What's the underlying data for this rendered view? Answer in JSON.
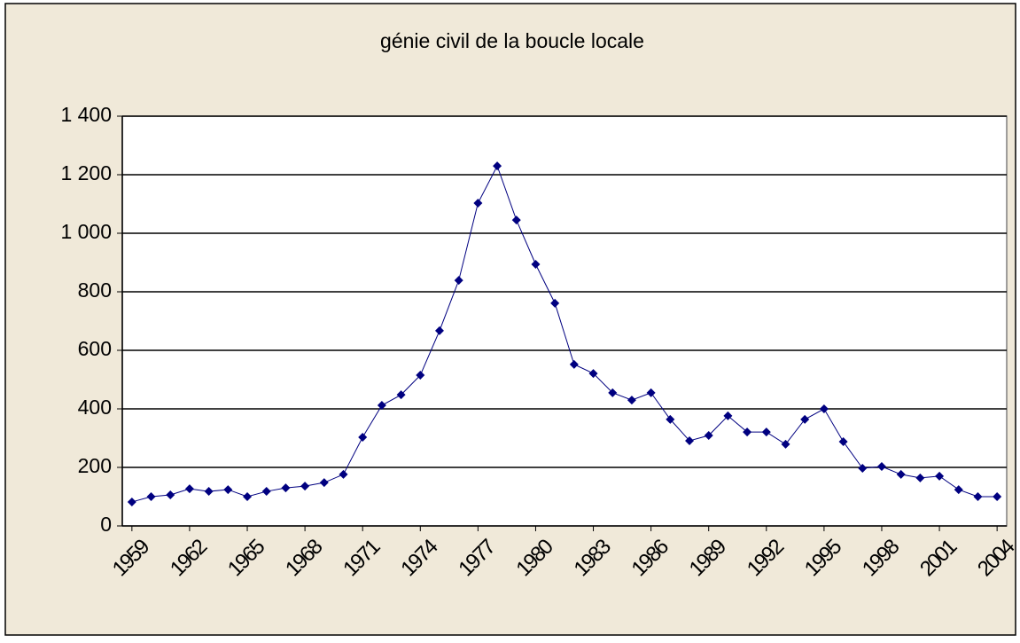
{
  "chart_data": {
    "type": "line",
    "title": "génie civil de la boucle locale",
    "x": [
      1959,
      1960,
      1961,
      1962,
      1963,
      1964,
      1965,
      1966,
      1967,
      1968,
      1969,
      1970,
      1971,
      1972,
      1973,
      1974,
      1975,
      1976,
      1977,
      1978,
      1979,
      1980,
      1981,
      1982,
      1983,
      1984,
      1985,
      1986,
      1987,
      1988,
      1989,
      1990,
      1991,
      1992,
      1993,
      1994,
      1995,
      1996,
      1997,
      1998,
      1999,
      2000,
      2001,
      2002,
      2003,
      2004
    ],
    "series": [
      {
        "name": null,
        "color": "#000080",
        "values": [
          82,
          100,
          106,
          127,
          118,
          124,
          100,
          118,
          130,
          136,
          148,
          176,
          303,
          412,
          448,
          515,
          667,
          839,
          1103,
          1230,
          1045,
          894,
          761,
          552,
          521,
          455,
          430,
          455,
          364,
          291,
          309,
          376,
          321,
          321,
          279,
          364,
          400,
          288,
          197,
          203,
          176,
          164,
          170,
          124,
          100,
          100
        ]
      }
    ],
    "xlim": [
      1958.5,
      2004.5
    ],
    "xticks": [
      1959,
      1962,
      1965,
      1968,
      1971,
      1974,
      1977,
      1980,
      1983,
      1986,
      1989,
      1992,
      1995,
      1998,
      2001,
      2004
    ],
    "ylim": [
      0,
      1400
    ],
    "yticks": [
      0,
      200,
      400,
      600,
      800,
      {
        "value": 1000,
        "label": "1 000"
      },
      {
        "value": 1200,
        "label": "1 200"
      },
      {
        "value": 1400,
        "label": "1 400"
      }
    ],
    "grid": true
  }
}
